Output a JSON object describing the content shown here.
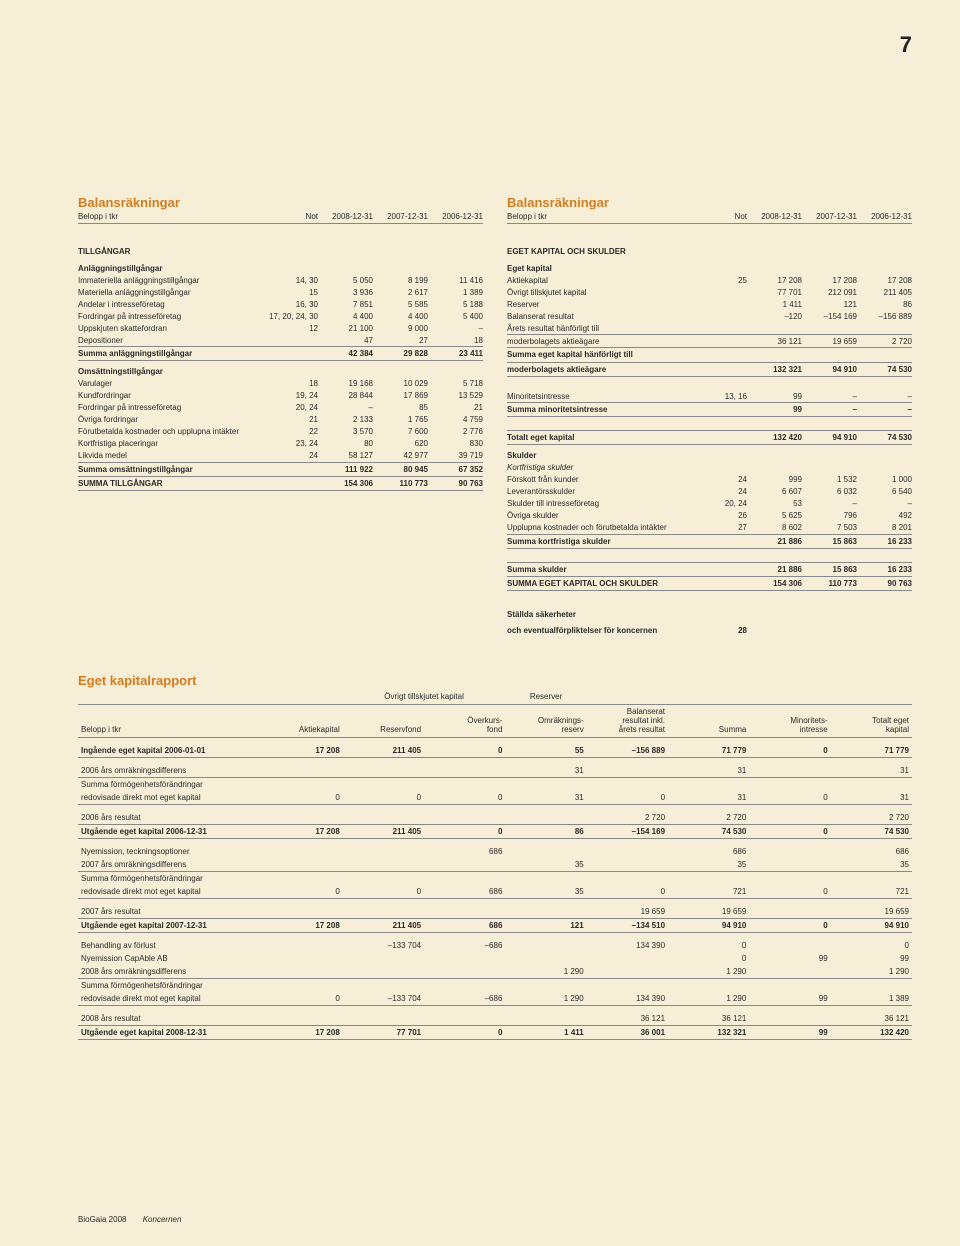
{
  "page_number": "7",
  "footer": {
    "a": "BioGaia 2008",
    "b": "Koncernen"
  },
  "left": {
    "title": "Balansräkningar",
    "header": {
      "belopp": "Belopp i tkr",
      "not": "Not",
      "c1": "2008-12-31",
      "c2": "2007-12-31",
      "c3": "2006-12-31"
    },
    "sections": {
      "tillgangar": "TILLGÅNGAR",
      "anl": "Anläggningstillgångar",
      "oms": "Omsättningstillgångar"
    },
    "rows_anl": [
      [
        "Immateriella anläggningstillgångar",
        "14, 30",
        "5 050",
        "8 199",
        "11 416"
      ],
      [
        "Materiella anläggningstillgångar",
        "15",
        "3 936",
        "2 617",
        "1 389"
      ],
      [
        "Andelar i intresseföretag",
        "16, 30",
        "7 851",
        "5 585",
        "5 188"
      ],
      [
        "Fordringar på intresseföretag",
        "17, 20, 24, 30",
        "4 400",
        "4 400",
        "5 400"
      ],
      [
        "Uppskjuten skattefordran",
        "12",
        "21 100",
        "9 000",
        "–"
      ],
      [
        "Depositioner",
        "",
        "47",
        "27",
        "18"
      ]
    ],
    "sum_anl": [
      "Summa anläggningstillgångar",
      "",
      "42 384",
      "29 828",
      "23 411"
    ],
    "rows_oms": [
      [
        "Varulager",
        "18",
        "19 168",
        "10 029",
        "5 718"
      ],
      [
        "Kundfordringar",
        "19, 24",
        "28 844",
        "17 869",
        "13 529"
      ],
      [
        "Fordringar på intresseföretag",
        "20, 24",
        "–",
        "85",
        "21"
      ],
      [
        "Övriga fordringar",
        "21",
        "2 133",
        "1 765",
        "4 759"
      ],
      [
        "Förutbetalda kostnader och upplupna intäkter",
        "22",
        "3 570",
        "7 600",
        "2 776"
      ],
      [
        "Kortfristiga placeringar",
        "23, 24",
        "80",
        "620",
        "830"
      ],
      [
        "Likvida medel",
        "24",
        "58 127",
        "42 977",
        "39 719"
      ]
    ],
    "sum_oms": [
      "Summa omsättningstillgångar",
      "",
      "111 922",
      "80 945",
      "67 352"
    ],
    "sum_tot": [
      "SUMMA TILLGÅNGAR",
      "",
      "154 306",
      "110 773",
      "90 763"
    ]
  },
  "right": {
    "title": "Balansräkningar",
    "header": {
      "belopp": "Belopp i tkr",
      "not": "Not",
      "c1": "2008-12-31",
      "c2": "2007-12-31",
      "c3": "2006-12-31"
    },
    "sections": {
      "eks": "EGET KAPITAL OCH SKULDER",
      "ek": "Eget kapital",
      "sk": "Skulder",
      "ks": "Kortfristiga skulder",
      "st": "Ställda säkerheter",
      "st2": "och eventualförpliktelser för koncernen"
    },
    "rows_ek": [
      [
        "Aktiekapital",
        "25",
        "17 208",
        "17 208",
        "17 208"
      ],
      [
        "Övrigt tillskjutet kapital",
        "",
        "77 701",
        "212 091",
        "211 405"
      ],
      [
        "Reserver",
        "",
        "1 411",
        "121",
        "86"
      ],
      [
        "Balanserat resultat",
        "",
        "–120",
        "–154 169",
        "–156 889"
      ],
      [
        "Årets resultat hänförligt till",
        "",
        "",
        "",
        ""
      ],
      [
        "moderbolagets aktieägare",
        "",
        "36 121",
        "19 659",
        "2 720"
      ]
    ],
    "sum_ek1_a": "Summa eget kapital hänförligt till",
    "sum_ek1": [
      "moderbolagets aktieägare",
      "",
      "132 321",
      "94 910",
      "74 530"
    ],
    "min": [
      "Minoritetsintresse",
      "13, 16",
      "99",
      "–",
      "–"
    ],
    "sum_min": [
      "Summa minoritetsintresse",
      "",
      "99",
      "–",
      "–"
    ],
    "tot_ek": [
      "Totalt eget kapital",
      "",
      "132 420",
      "94 910",
      "74 530"
    ],
    "rows_sk": [
      [
        "Förskott från kunder",
        "24",
        "999",
        "1 532",
        "1 000"
      ],
      [
        "Leverantörsskulder",
        "24",
        "6 607",
        "6 032",
        "6 540"
      ],
      [
        "Skulder till intresseföretag",
        "20, 24",
        "53",
        "–",
        "–"
      ],
      [
        "Övriga skulder",
        "26",
        "5 625",
        "796",
        "492"
      ],
      [
        "Upplupna kostnader och förutbetalda intäkter",
        "27",
        "8 602",
        "7 503",
        "8 201"
      ]
    ],
    "sum_ks": [
      "Summa kortfristiga skulder",
      "",
      "21 886",
      "15 863",
      "16 233"
    ],
    "sum_sk": [
      "Summa skulder",
      "",
      "21 886",
      "15 863",
      "16 233"
    ],
    "sum_tot": [
      "SUMMA EGET KAPITAL OCH SKULDER",
      "",
      "154 306",
      "110 773",
      "90 763"
    ],
    "st_not": "28"
  },
  "equity": {
    "title": "Eget kapitalrapport",
    "super1": "Övrigt tillskjutet kapital",
    "super2": "Reserver",
    "cols": [
      "Belopp i tkr",
      "Aktiekapital",
      "Reservfond",
      "Överkurs-\nfond",
      "Omräknings-\nreserv",
      "Balanserat\nresultat inkl.\nårets resultat",
      "Summa",
      "Minoritets-\nintresse",
      "Totalt eget\nkapital"
    ],
    "rows": [
      {
        "t": "bold sp line",
        "d": [
          "Ingående eget kapital 2006-01-01",
          "17 208",
          "211 405",
          "0",
          "55",
          "–156 889",
          "71 779",
          "0",
          "71 779"
        ]
      },
      {
        "t": "sp line",
        "d": [
          "2006 års omräkningsdifferens",
          "",
          "",
          "",
          "31",
          "",
          "31",
          "",
          "31"
        ]
      },
      {
        "t": "",
        "d": [
          "Summa förmögenhetsförändringar",
          "",
          "",
          "",
          "",
          "",
          "",
          "",
          ""
        ]
      },
      {
        "t": "line",
        "d": [
          "redovisade direkt mot eget kapital",
          "0",
          "0",
          "0",
          "31",
          "0",
          "31",
          "0",
          "31"
        ]
      },
      {
        "t": "sp line",
        "d": [
          "2006 års resultat",
          "",
          "",
          "",
          "",
          "2 720",
          "2 720",
          "",
          "2 720"
        ]
      },
      {
        "t": "bold line",
        "d": [
          "Utgående eget kapital 2006-12-31",
          "17 208",
          "211 405",
          "0",
          "86",
          "–154 169",
          "74 530",
          "0",
          "74 530"
        ]
      },
      {
        "t": "sp",
        "d": [
          "Nyemission, teckningsoptioner",
          "",
          "",
          "686",
          "",
          "",
          "686",
          "",
          "686"
        ]
      },
      {
        "t": "line",
        "d": [
          "2007 års omräkningsdifferens",
          "",
          "",
          "",
          "35",
          "",
          "35",
          "",
          "35"
        ]
      },
      {
        "t": "",
        "d": [
          "Summa förmögenhetsförändringar",
          "",
          "",
          "",
          "",
          "",
          "",
          "",
          ""
        ]
      },
      {
        "t": "line",
        "d": [
          "redovisade direkt mot eget kapital",
          "0",
          "0",
          "686",
          "35",
          "0",
          "721",
          "0",
          "721"
        ]
      },
      {
        "t": "sp line",
        "d": [
          "2007 års resultat",
          "",
          "",
          "",
          "",
          "19 659",
          "19 659",
          "",
          "19 659"
        ]
      },
      {
        "t": "bold line",
        "d": [
          "Utgående eget kapital 2007-12-31",
          "17 208",
          "211 405",
          "686",
          "121",
          "–134 510",
          "94 910",
          "0",
          "94 910"
        ]
      },
      {
        "t": "sp",
        "d": [
          "Behandling av förlust",
          "",
          "–133 704",
          "–686",
          "",
          "134 390",
          "0",
          "",
          "0"
        ]
      },
      {
        "t": "",
        "d": [
          "Nyemission CapAble AB",
          "",
          "",
          "",
          "",
          "",
          "0",
          "99",
          "99"
        ]
      },
      {
        "t": "line",
        "d": [
          "2008 års omräkningsdifferens",
          "",
          "",
          "",
          "1 290",
          "",
          "1 290",
          "",
          "1 290"
        ]
      },
      {
        "t": "",
        "d": [
          "Summa förmögenhetsförändringar",
          "",
          "",
          "",
          "",
          "",
          "",
          "",
          ""
        ]
      },
      {
        "t": "line",
        "d": [
          "redovisade direkt mot eget kapital",
          "0",
          "–133 704",
          "–686",
          "1 290",
          "134 390",
          "1 290",
          "99",
          "1 389"
        ]
      },
      {
        "t": "sp line",
        "d": [
          "2008 års resultat",
          "",
          "",
          "",
          "",
          "36 121",
          "36 121",
          "",
          "36 121"
        ]
      },
      {
        "t": "bold line",
        "d": [
          "Utgående eget kapital 2008-12-31",
          "17 208",
          "77 701",
          "0",
          "1 411",
          "36 001",
          "132 321",
          "99",
          "132 420"
        ]
      }
    ]
  }
}
